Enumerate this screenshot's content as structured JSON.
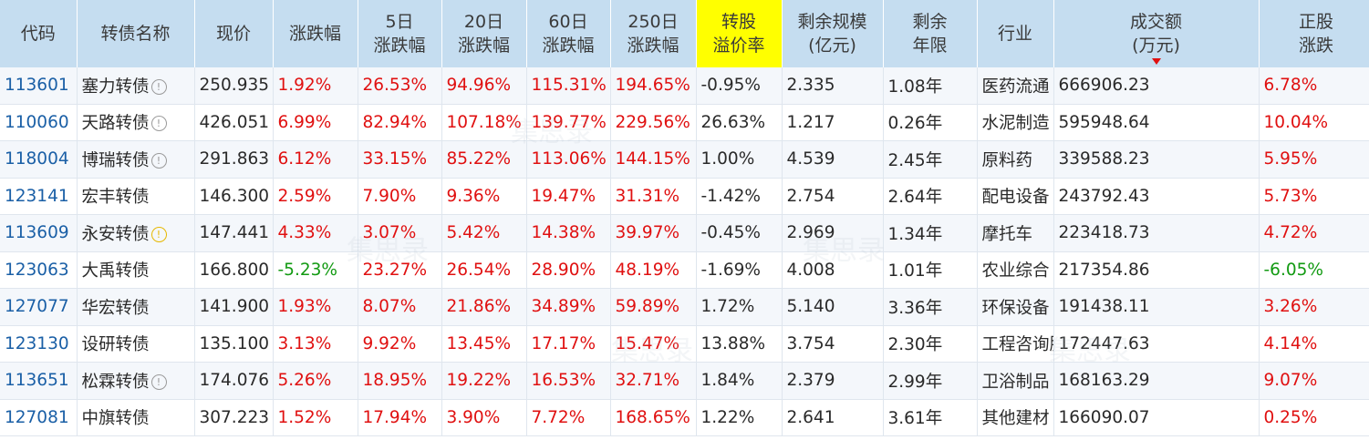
{
  "headers": {
    "code": "代码",
    "name": "转债名称",
    "price": "现价",
    "change": "涨跌幅",
    "chg5_a": "5日",
    "chg5_b": "涨跌幅",
    "chg20_a": "20日",
    "chg20_b": "涨跌幅",
    "chg60_a": "60日",
    "chg60_b": "涨跌幅",
    "chg250_a": "250日",
    "chg250_b": "涨跌幅",
    "premium_a": "转股",
    "premium_b": "溢价率",
    "scale_a": "剩余规模",
    "scale_b": "(亿元)",
    "years_a": "剩余",
    "years_b": "年限",
    "industry": "行业",
    "volume_a": "成交额",
    "volume_b": "(万元)",
    "stock_a": "正股",
    "stock_b": "涨跌"
  },
  "highlight_color": "#ffff00",
  "sort_column": "volume",
  "watermark": "集思录",
  "rows": [
    {
      "code": "113601",
      "name": "塞力转债",
      "icon": "info-icon",
      "price": "250.935",
      "change": "1.92%",
      "chg5": "26.53%",
      "chg20": "94.96%",
      "chg60": "115.31%",
      "chg250": "194.65%",
      "premium": "-0.95%",
      "scale": "2.335",
      "years": "1.08年",
      "industry": "医药流通",
      "volume": "666906.23",
      "stock": "6.78%"
    },
    {
      "code": "110060",
      "name": "天路转债",
      "icon": "info-icon",
      "price": "426.051",
      "change": "6.99%",
      "chg5": "82.94%",
      "chg20": "107.18%",
      "chg60": "139.77%",
      "chg250": "229.56%",
      "premium": "26.63%",
      "scale": "1.217",
      "years": "0.26年",
      "industry": "水泥制造",
      "volume": "595948.64",
      "stock": "10.04%"
    },
    {
      "code": "118004",
      "name": "博瑞转债",
      "icon": "info-icon",
      "price": "291.863",
      "change": "6.12%",
      "chg5": "33.15%",
      "chg20": "85.22%",
      "chg60": "113.06%",
      "chg250": "144.15%",
      "premium": "1.00%",
      "scale": "4.539",
      "years": "2.45年",
      "industry": "原料药",
      "volume": "339588.23",
      "stock": "5.95%"
    },
    {
      "code": "123141",
      "name": "宏丰转债",
      "icon": "",
      "price": "146.300",
      "change": "2.59%",
      "chg5": "7.90%",
      "chg20": "9.36%",
      "chg60": "19.47%",
      "chg250": "31.31%",
      "premium": "-1.42%",
      "scale": "2.754",
      "years": "2.64年",
      "industry": "配电设备",
      "volume": "243792.43",
      "stock": "5.73%"
    },
    {
      "code": "113609",
      "name": "永安转债",
      "icon": "warn-icon",
      "price": "147.441",
      "change": "4.33%",
      "chg5": "3.07%",
      "chg20": "5.42%",
      "chg60": "14.38%",
      "chg250": "39.97%",
      "premium": "-0.45%",
      "scale": "2.969",
      "years": "1.34年",
      "industry": "摩托车",
      "volume": "223418.73",
      "stock": "4.72%"
    },
    {
      "code": "123063",
      "name": "大禹转债",
      "icon": "",
      "price": "166.800",
      "change": "-5.23%",
      "chg5": "23.27%",
      "chg20": "26.54%",
      "chg60": "28.90%",
      "chg250": "48.19%",
      "premium": "-1.69%",
      "scale": "4.008",
      "years": "1.01年",
      "industry": "农业综合",
      "volume": "217354.86",
      "stock": "-6.05%"
    },
    {
      "code": "127077",
      "name": "华宏转债",
      "icon": "",
      "price": "141.900",
      "change": "1.93%",
      "chg5": "8.07%",
      "chg20": "21.86%",
      "chg60": "34.89%",
      "chg250": "59.89%",
      "premium": "1.72%",
      "scale": "5.140",
      "years": "3.36年",
      "industry": "环保设备",
      "volume": "191438.11",
      "stock": "3.26%"
    },
    {
      "code": "123130",
      "name": "设研转债",
      "icon": "",
      "price": "135.100",
      "change": "3.13%",
      "chg5": "9.92%",
      "chg20": "13.45%",
      "chg60": "17.17%",
      "chg250": "15.47%",
      "premium": "13.88%",
      "scale": "3.754",
      "years": "2.30年",
      "industry": "工程咨询服务",
      "volume": "172447.63",
      "stock": "4.14%"
    },
    {
      "code": "113651",
      "name": "松霖转债",
      "icon": "info-icon",
      "price": "174.076",
      "change": "5.26%",
      "chg5": "18.95%",
      "chg20": "19.22%",
      "chg60": "16.53%",
      "chg250": "32.71%",
      "premium": "1.84%",
      "scale": "2.379",
      "years": "2.99年",
      "industry": "卫浴制品",
      "volume": "168163.29",
      "stock": "9.07%"
    },
    {
      "code": "127081",
      "name": "中旗转债",
      "icon": "",
      "price": "307.223",
      "change": "1.52%",
      "chg5": "17.94%",
      "chg20": "3.90%",
      "chg60": "7.72%",
      "chg250": "168.65%",
      "premium": "1.22%",
      "scale": "2.641",
      "years": "3.61年",
      "industry": "其他建材",
      "volume": "166090.07",
      "stock": "0.25%"
    }
  ]
}
